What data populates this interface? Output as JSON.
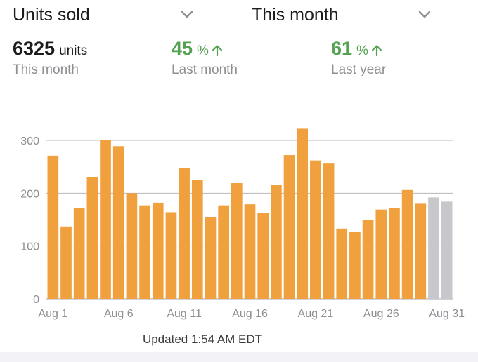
{
  "header": {
    "metric_selector": {
      "label": "Units sold"
    },
    "period_selector": {
      "label": "This month"
    }
  },
  "stats": [
    {
      "value": "6325",
      "unit": "units",
      "sublabel": "This month"
    },
    {
      "value": "45",
      "unit": "%",
      "sublabel": "Last month",
      "trend": "up"
    },
    {
      "value": "61",
      "unit": "%",
      "sublabel": "Last year",
      "trend": "up"
    }
  ],
  "colors": {
    "bar": "#f0a03c",
    "bar_future": "#c7c7cc",
    "trend_up": "#54a251",
    "grid": "#b8b8bd",
    "axis_text": "#8e8e93"
  },
  "chart_data": {
    "type": "bar",
    "categories": [
      "Aug 1",
      "Aug 2",
      "Aug 3",
      "Aug 4",
      "Aug 5",
      "Aug 6",
      "Aug 7",
      "Aug 8",
      "Aug 9",
      "Aug 10",
      "Aug 11",
      "Aug 12",
      "Aug 13",
      "Aug 14",
      "Aug 15",
      "Aug 16",
      "Aug 17",
      "Aug 18",
      "Aug 19",
      "Aug 20",
      "Aug 21",
      "Aug 22",
      "Aug 23",
      "Aug 24",
      "Aug 25",
      "Aug 26",
      "Aug 27",
      "Aug 28",
      "Aug 29",
      "Aug 30",
      "Aug 31"
    ],
    "values": [
      271,
      137,
      172,
      230,
      300,
      289,
      200,
      177,
      182,
      164,
      247,
      225,
      154,
      177,
      219,
      179,
      163,
      215,
      272,
      322,
      262,
      256,
      133,
      127,
      149,
      169,
      172,
      206,
      180,
      192,
      184
    ],
    "future_from_index": 29,
    "x_tick_labels": [
      "Aug 1",
      "Aug 6",
      "Aug 11",
      "Aug 16",
      "Aug 21",
      "Aug 26",
      "Aug 31"
    ],
    "y_ticks": [
      0,
      100,
      200,
      300
    ],
    "ylim": [
      0,
      300
    ],
    "grid": true,
    "title": "",
    "xlabel": "",
    "ylabel": ""
  },
  "footer": {
    "updated_text": "Updated 1:54 AM EDT"
  }
}
